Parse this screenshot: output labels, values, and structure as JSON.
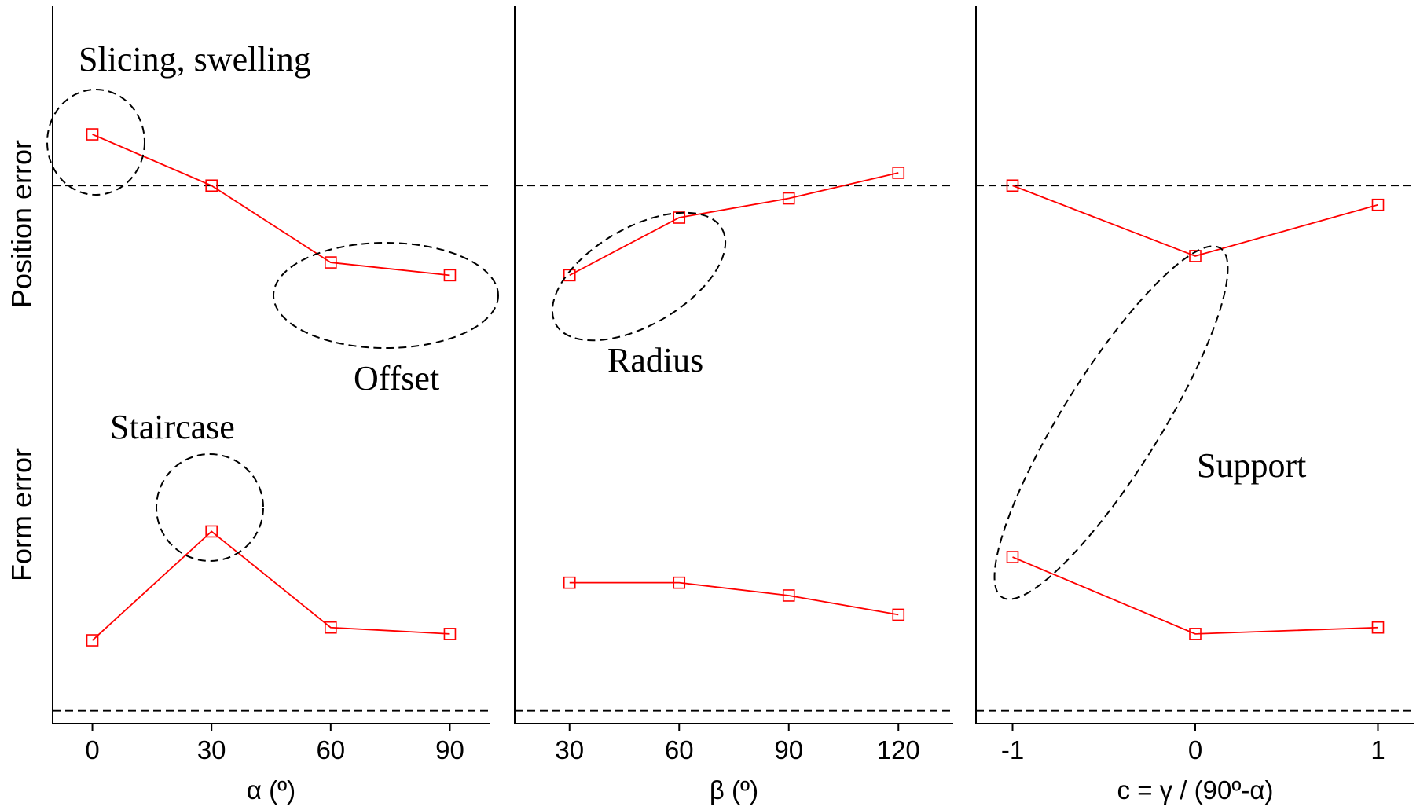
{
  "chart_data": {
    "type": "line",
    "y_labels": [
      "Position error",
      "Form error"
    ],
    "panels": [
      {
        "xlabel": "α (º)",
        "categories": [
          "0",
          "30",
          "60",
          "90"
        ],
        "x": [
          0,
          30,
          60,
          90
        ],
        "xlim": [
          -10,
          100
        ],
        "series": [
          {
            "group": "position",
            "values": [
              0.9,
              0.82,
              0.7,
              0.68
            ]
          },
          {
            "group": "form",
            "values": [
              0.11,
              0.28,
              0.13,
              0.12
            ]
          }
        ],
        "annotations": [
          {
            "text": "Slicing, swelling",
            "target": "position"
          },
          {
            "text": "Offset",
            "target": "position"
          },
          {
            "text": "Staircase",
            "target": "form"
          }
        ]
      },
      {
        "xlabel": "β (º)",
        "categories": [
          "30",
          "60",
          "90",
          "120"
        ],
        "x": [
          30,
          60,
          90,
          120
        ],
        "xlim": [
          15,
          135
        ],
        "series": [
          {
            "group": "position",
            "values": [
              0.68,
              0.77,
              0.8,
              0.84
            ]
          },
          {
            "group": "form",
            "values": [
              0.2,
              0.2,
              0.18,
              0.15
            ]
          }
        ],
        "annotations": [
          {
            "text": "Radius",
            "target": "position"
          }
        ]
      },
      {
        "xlabel": "c = γ / (90º-α)",
        "categories": [
          "-1",
          "0",
          "1"
        ],
        "x": [
          -1,
          0,
          1
        ],
        "xlim": [
          -1.2,
          1.2
        ],
        "series": [
          {
            "group": "position",
            "values": [
              0.82,
              0.71,
              0.79
            ]
          },
          {
            "group": "form",
            "values": [
              0.24,
              0.12,
              0.13
            ]
          }
        ],
        "annotations": [
          {
            "text": "Support",
            "target": "both"
          }
        ]
      }
    ],
    "reference_lines": {
      "position": 0.82,
      "form": 0.0
    },
    "ylim": [
      -0.02,
      1.1
    ],
    "colors": {
      "series": "#ff0000",
      "axes": "#000000",
      "reference": "#000000"
    }
  }
}
